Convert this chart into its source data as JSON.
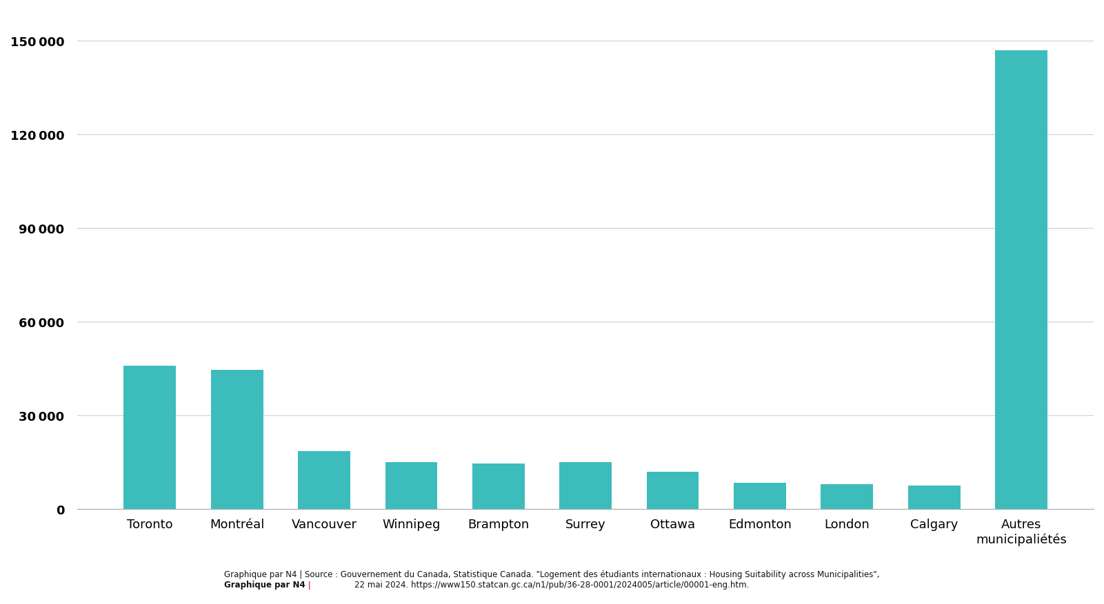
{
  "categories": [
    "Toronto",
    "Montréal",
    "Vancouver",
    "Winnipeg",
    "Brampton",
    "Surrey",
    "Ottawa",
    "Edmonton",
    "London",
    "Calgary",
    "Autres\nmunicipaliétés"
  ],
  "values": [
    46000,
    44500,
    18500,
    15000,
    14500,
    15000,
    12000,
    8500,
    8000,
    7500,
    147000
  ],
  "bar_color": "#3dbcbc",
  "background_color": "#ffffff",
  "ylabel_ticks": [
    0,
    30000,
    60000,
    90000,
    120000,
    150000
  ],
  "ylim": [
    0,
    158000
  ],
  "footer_bold": "Graphique par N4",
  "footer_sep": " | ",
  "footer_sep_color": "#cc0000",
  "footer_normal": "Source : Gouvernement du Canada, Statistique Canada. \"Logement des étudiants internationaux : Housing Suitability across Municipalities\",",
  "footer_line2": "22 mai 2024. https://www150.statcan.gc.ca/n1/pub/36-28-0001/2024005/article/00001-eng.htm.",
  "tick_fontsize": 13,
  "ytick_fontweight": "bold",
  "footer_fontsize": 8.5
}
